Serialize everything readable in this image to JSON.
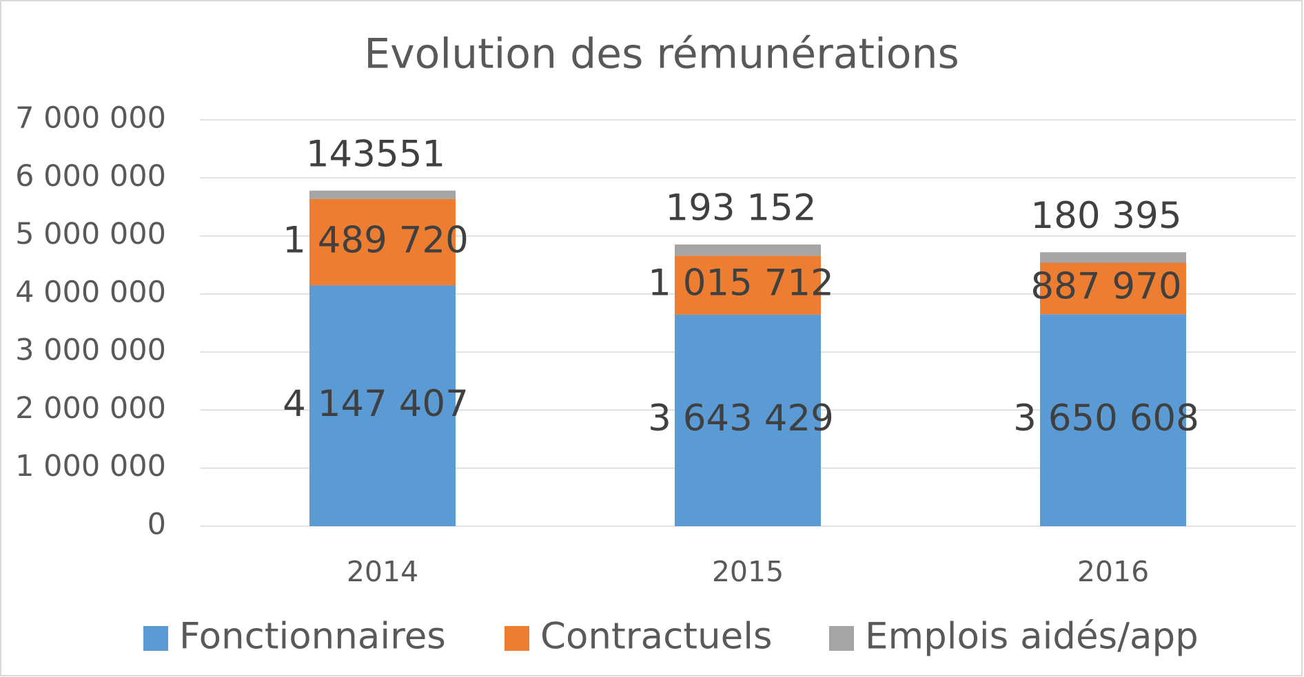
{
  "chart_data": {
    "type": "stacked_bar",
    "title": "Evolution des rémunérations",
    "categories": [
      "2014",
      "2015",
      "2016"
    ],
    "series": [
      {
        "name": "Fonctionnaires",
        "color": "#5b9bd5",
        "values": [
          4147407,
          3643429,
          3650608
        ],
        "value_labels": [
          "4 147 407",
          "3 643 429",
          "3 650 608"
        ]
      },
      {
        "name": "Contractuels",
        "color": "#ed7d31",
        "values": [
          1489720,
          1015712,
          887970
        ],
        "value_labels": [
          "1 489 720",
          "1 015 712",
          "887 970"
        ]
      },
      {
        "name": "Emplois aidés/app",
        "color": "#a5a5a5",
        "values": [
          143551,
          193152,
          180395
        ],
        "value_labels": [
          "143551",
          "193 152",
          "180 395"
        ]
      }
    ],
    "ylim": [
      0,
      7000000
    ],
    "yticks": [
      0,
      {
        "value": 1000000,
        "label": "1 000 000"
      },
      {
        "value": 2000000,
        "label": "2 000 000"
      },
      {
        "value": 3000000,
        "label": "3 000 000"
      },
      {
        "value": 4000000,
        "label": "4 000 000"
      },
      {
        "value": 5000000,
        "label": "5 000 000"
      },
      {
        "value": 6000000,
        "label": "6 000 000"
      },
      {
        "value": 7000000,
        "label": "7 000 000"
      }
    ],
    "grid": true,
    "legend": "bottom"
  }
}
